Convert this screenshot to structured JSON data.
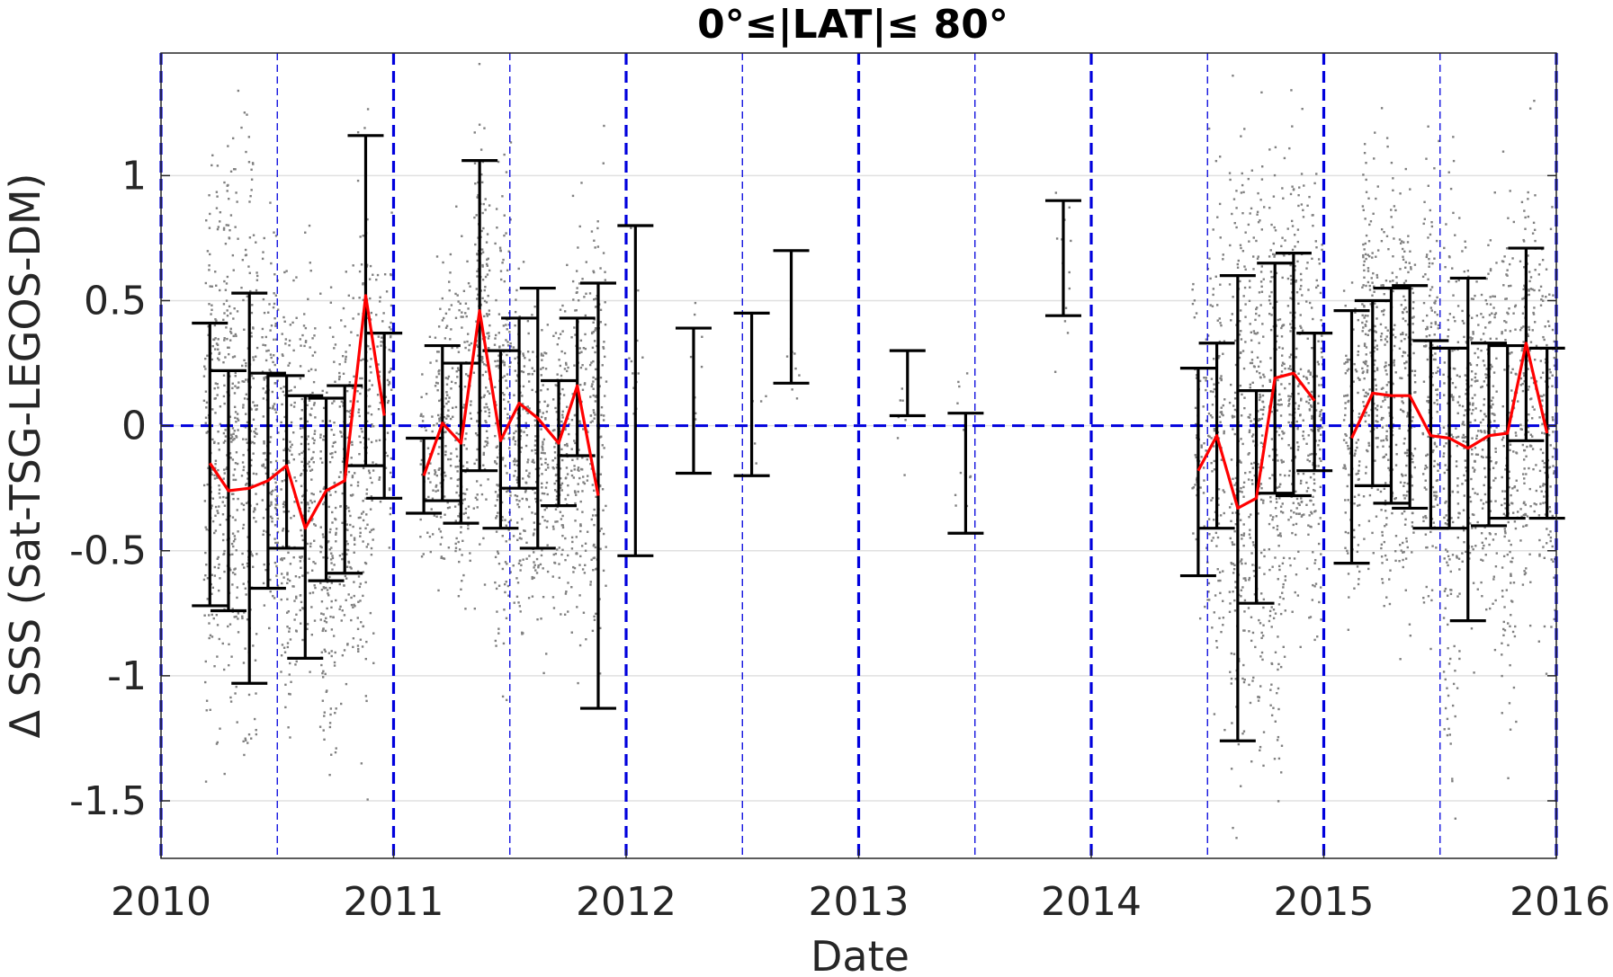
{
  "chart_data": {
    "type": "scatter",
    "title": "0°≤|LAT|≤ 80°",
    "xlabel": "Date",
    "ylabel": "Δ SSS (Sat-TSG-LEGOS-DM)",
    "xlim": [
      2010,
      2016
    ],
    "ylim": [
      -1.73,
      1.49
    ],
    "x_ticks": [
      2010,
      2011,
      2012,
      2013,
      2014,
      2015,
      2016
    ],
    "x_tick_labels": [
      "2010",
      "2011",
      "2012",
      "2013",
      "2014",
      "2015",
      "2016"
    ],
    "y_ticks": [
      1,
      0.5,
      0,
      -0.5,
      -1,
      -1.5
    ],
    "y_tick_labels": [
      "1",
      "0.5",
      "0",
      "-0.5",
      "-1",
      "-1.5"
    ],
    "grid": "horizontal",
    "year_lines": [
      2010,
      2011,
      2012,
      2013,
      2014,
      2015,
      2016
    ],
    "half_year_lines": [
      2010.5,
      2011.5,
      2012.5,
      2013.5,
      2014.5,
      2015.5
    ],
    "zero_line": 0,
    "colors": {
      "points": "#808080",
      "error_bars": "#000000",
      "mean_line": "#ff0000",
      "reference_lines": "#0000dd",
      "grid": "#e0e0e0"
    },
    "scatter_clusters": [
      {
        "x": 2010.22,
        "min": -1.6,
        "max": 1.4,
        "n": 170
      },
      {
        "x": 2010.3,
        "min": -1.4,
        "max": 1.4,
        "n": 190
      },
      {
        "x": 2010.38,
        "min": -1.5,
        "max": 1.4,
        "n": 170
      },
      {
        "x": 2010.47,
        "min": -1.1,
        "max": 0.9,
        "n": 150
      },
      {
        "x": 2010.55,
        "min": -1.6,
        "max": 0.9,
        "n": 130
      },
      {
        "x": 2010.63,
        "min": -1.2,
        "max": 0.8,
        "n": 150
      },
      {
        "x": 2010.72,
        "min": -1.6,
        "max": 0.7,
        "n": 150
      },
      {
        "x": 2010.8,
        "min": -1.3,
        "max": 0.8,
        "n": 140
      },
      {
        "x": 2010.88,
        "min": -1.5,
        "max": 1.38,
        "n": 150
      },
      {
        "x": 2010.96,
        "min": -0.6,
        "max": 0.9,
        "n": 70
      },
      {
        "x": 2011.15,
        "min": -0.6,
        "max": 0.4,
        "n": 50
      },
      {
        "x": 2011.22,
        "min": -0.8,
        "max": 0.8,
        "n": 120
      },
      {
        "x": 2011.3,
        "min": -0.9,
        "max": 0.9,
        "n": 130
      },
      {
        "x": 2011.38,
        "min": -0.8,
        "max": 1.45,
        "n": 160
      },
      {
        "x": 2011.47,
        "min": -1.2,
        "max": 1.2,
        "n": 170
      },
      {
        "x": 2011.55,
        "min": -1.0,
        "max": 0.8,
        "n": 140
      },
      {
        "x": 2011.63,
        "min": -1.0,
        "max": 0.7,
        "n": 130
      },
      {
        "x": 2011.72,
        "min": -1.0,
        "max": 0.7,
        "n": 130
      },
      {
        "x": 2011.8,
        "min": -1.1,
        "max": 1.0,
        "n": 120
      },
      {
        "x": 2011.88,
        "min": -1.2,
        "max": 1.2,
        "n": 140
      },
      {
        "x": 2012.04,
        "min": -0.5,
        "max": 1.2,
        "n": 12
      },
      {
        "x": 2012.3,
        "min": -0.2,
        "max": 0.65,
        "n": 8
      },
      {
        "x": 2012.57,
        "min": -0.2,
        "max": 0.3,
        "n": 6
      },
      {
        "x": 2012.72,
        "min": -0.07,
        "max": 0.55,
        "n": 8
      },
      {
        "x": 2013.2,
        "min": -0.2,
        "max": 0.42,
        "n": 8
      },
      {
        "x": 2013.45,
        "min": -0.55,
        "max": 0.3,
        "n": 12
      },
      {
        "x": 2013.88,
        "min": 0.15,
        "max": 1.1,
        "n": 14
      },
      {
        "x": 2014.47,
        "min": -0.9,
        "max": 0.9,
        "n": 60
      },
      {
        "x": 2014.54,
        "min": -1.3,
        "max": 1.2,
        "n": 120
      },
      {
        "x": 2014.63,
        "min": -1.7,
        "max": 1.4,
        "n": 180
      },
      {
        "x": 2014.71,
        "min": -1.5,
        "max": 1.4,
        "n": 190
      },
      {
        "x": 2014.8,
        "min": -1.6,
        "max": 1.4,
        "n": 190
      },
      {
        "x": 2014.88,
        "min": -1.0,
        "max": 1.4,
        "n": 170
      },
      {
        "x": 2014.96,
        "min": -1.1,
        "max": 1.2,
        "n": 150
      },
      {
        "x": 2015.12,
        "min": -0.9,
        "max": 0.8,
        "n": 110
      },
      {
        "x": 2015.2,
        "min": -0.6,
        "max": 1.3,
        "n": 160
      },
      {
        "x": 2015.28,
        "min": -1.0,
        "max": 1.3,
        "n": 160
      },
      {
        "x": 2015.36,
        "min": -1.0,
        "max": 1.2,
        "n": 160
      },
      {
        "x": 2015.46,
        "min": -1.0,
        "max": 1.2,
        "n": 150
      },
      {
        "x": 2015.55,
        "min": -1.7,
        "max": 1.3,
        "n": 150
      },
      {
        "x": 2015.63,
        "min": -1.0,
        "max": 1.0,
        "n": 140
      },
      {
        "x": 2015.71,
        "min": -1.0,
        "max": 1.0,
        "n": 140
      },
      {
        "x": 2015.8,
        "min": -1.5,
        "max": 1.2,
        "n": 150
      },
      {
        "x": 2015.88,
        "min": -1.0,
        "max": 1.3,
        "n": 150
      },
      {
        "x": 2015.96,
        "min": -1.0,
        "max": 1.0,
        "n": 120
      }
    ],
    "error_bars": [
      {
        "x": 2010.21,
        "mean": -0.15,
        "lower": -0.72,
        "upper": 0.41
      },
      {
        "x": 2010.29,
        "mean": -0.26,
        "lower": -0.74,
        "upper": 0.22
      },
      {
        "x": 2010.38,
        "mean": -0.25,
        "lower": -1.03,
        "upper": 0.53
      },
      {
        "x": 2010.46,
        "mean": -0.22,
        "lower": -0.65,
        "upper": 0.21
      },
      {
        "x": 2010.54,
        "mean": -0.16,
        "lower": -0.49,
        "upper": 0.2
      },
      {
        "x": 2010.62,
        "mean": -0.41,
        "lower": -0.93,
        "upper": 0.12
      },
      {
        "x": 2010.71,
        "mean": -0.26,
        "lower": -0.62,
        "upper": 0.11
      },
      {
        "x": 2010.79,
        "mean": -0.22,
        "lower": -0.59,
        "upper": 0.16
      },
      {
        "x": 2010.88,
        "mean": 0.52,
        "lower": -0.16,
        "upper": 1.16
      },
      {
        "x": 2010.96,
        "mean": 0.04,
        "lower": -0.29,
        "upper": 0.37
      },
      {
        "x": 2011.13,
        "mean": -0.2,
        "lower": -0.35,
        "upper": -0.05
      },
      {
        "x": 2011.21,
        "mean": 0.01,
        "lower": -0.3,
        "upper": 0.32
      },
      {
        "x": 2011.29,
        "mean": -0.07,
        "lower": -0.39,
        "upper": 0.25
      },
      {
        "x": 2011.37,
        "mean": 0.46,
        "lower": -0.18,
        "upper": 1.06
      },
      {
        "x": 2011.46,
        "mean": -0.06,
        "lower": -0.41,
        "upper": 0.3
      },
      {
        "x": 2011.54,
        "mean": 0.09,
        "lower": -0.25,
        "upper": 0.43
      },
      {
        "x": 2011.62,
        "mean": 0.03,
        "lower": -0.49,
        "upper": 0.55
      },
      {
        "x": 2011.71,
        "mean": -0.07,
        "lower": -0.32,
        "upper": 0.18
      },
      {
        "x": 2011.79,
        "mean": 0.16,
        "lower": -0.12,
        "upper": 0.43
      },
      {
        "x": 2011.88,
        "mean": -0.28,
        "lower": -1.13,
        "upper": 0.57
      },
      {
        "x": 2012.04,
        "mean": 0.14,
        "lower": -0.52,
        "upper": 0.8
      },
      {
        "x": 2012.29,
        "mean": 0.1,
        "lower": -0.19,
        "upper": 0.39
      },
      {
        "x": 2012.54,
        "mean": 0.12,
        "lower": -0.2,
        "upper": 0.45
      },
      {
        "x": 2012.71,
        "mean": 0.44,
        "lower": 0.17,
        "upper": 0.7
      },
      {
        "x": 2013.21,
        "mean": 0.17,
        "lower": 0.04,
        "upper": 0.3
      },
      {
        "x": 2013.46,
        "mean": -0.19,
        "lower": -0.43,
        "upper": 0.05
      },
      {
        "x": 2013.88,
        "mean": 0.67,
        "lower": 0.44,
        "upper": 0.9
      },
      {
        "x": 2014.46,
        "mean": -0.18,
        "lower": -0.6,
        "upper": 0.23
      },
      {
        "x": 2014.54,
        "mean": -0.04,
        "lower": -0.41,
        "upper": 0.33
      },
      {
        "x": 2014.63,
        "mean": -0.33,
        "lower": -1.26,
        "upper": 0.6
      },
      {
        "x": 2014.71,
        "mean": -0.29,
        "lower": -0.71,
        "upper": 0.14
      },
      {
        "x": 2014.79,
        "mean": 0.19,
        "lower": -0.27,
        "upper": 0.65
      },
      {
        "x": 2014.87,
        "mean": 0.21,
        "lower": -0.28,
        "upper": 0.69
      },
      {
        "x": 2014.96,
        "mean": 0.1,
        "lower": -0.18,
        "upper": 0.37
      },
      {
        "x": 2015.12,
        "mean": -0.05,
        "lower": -0.55,
        "upper": 0.46
      },
      {
        "x": 2015.21,
        "mean": 0.13,
        "lower": -0.24,
        "upper": 0.5
      },
      {
        "x": 2015.29,
        "mean": 0.12,
        "lower": -0.31,
        "upper": 0.55
      },
      {
        "x": 2015.37,
        "mean": 0.12,
        "lower": -0.33,
        "upper": 0.56
      },
      {
        "x": 2015.46,
        "mean": -0.04,
        "lower": -0.41,
        "upper": 0.34
      },
      {
        "x": 2015.54,
        "mean": -0.05,
        "lower": -0.41,
        "upper": 0.31
      },
      {
        "x": 2015.62,
        "mean": -0.09,
        "lower": -0.78,
        "upper": 0.59
      },
      {
        "x": 2015.71,
        "mean": -0.04,
        "lower": -0.4,
        "upper": 0.33
      },
      {
        "x": 2015.79,
        "mean": -0.03,
        "lower": -0.37,
        "upper": 0.32
      },
      {
        "x": 2015.87,
        "mean": 0.33,
        "lower": -0.06,
        "upper": 0.71
      },
      {
        "x": 2015.96,
        "mean": -0.03,
        "lower": -0.37,
        "upper": 0.31
      }
    ],
    "mean_line_segments": [
      [
        2010.21,
        2010.29,
        2010.38,
        2010.46,
        2010.54,
        2010.62,
        2010.71,
        2010.79,
        2010.88,
        2010.96
      ],
      [
        2011.13,
        2011.21,
        2011.29,
        2011.37,
        2011.46,
        2011.54,
        2011.62,
        2011.71,
        2011.79,
        2011.88
      ],
      [
        2014.46,
        2014.54,
        2014.63,
        2014.71,
        2014.79,
        2014.87,
        2014.96
      ],
      [
        2015.12,
        2015.21,
        2015.29,
        2015.37,
        2015.46,
        2015.54,
        2015.62,
        2015.71,
        2015.79,
        2015.87,
        2015.96
      ]
    ]
  }
}
